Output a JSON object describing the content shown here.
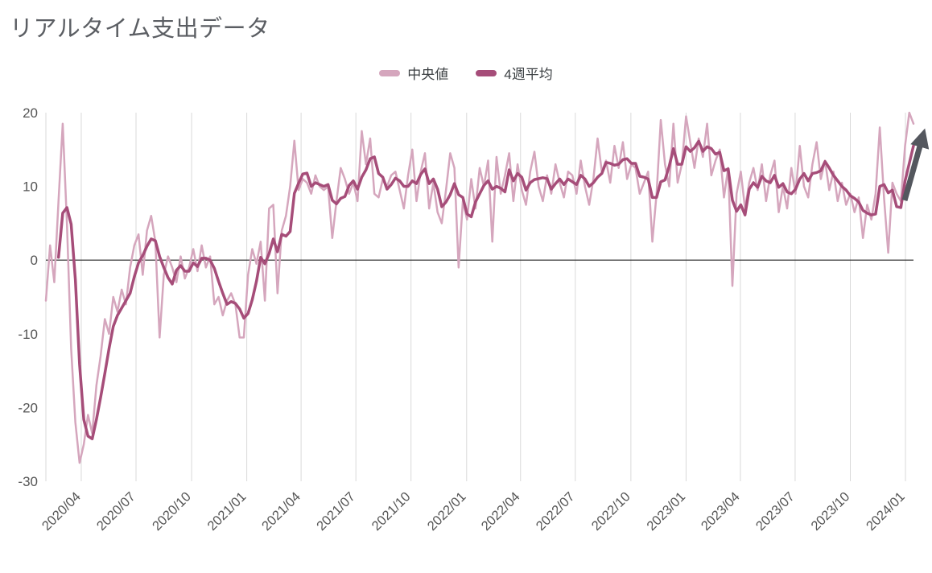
{
  "chart_data": {
    "type": "line",
    "title": "リアルタイム支出データ",
    "legend_position": "top-center",
    "grid": "vertical-quarter-gridlines, zero-baseline",
    "ylim": [
      -30,
      20
    ],
    "y_ticks": [
      20,
      10,
      0,
      -10,
      -20,
      -30
    ],
    "x_ticks": [
      {
        "label": "2020/04",
        "week": 8.4
      },
      {
        "label": "2020/07",
        "week": 21.4
      },
      {
        "label": "2020/10",
        "week": 34.6
      },
      {
        "label": "2021/01",
        "week": 47.7
      },
      {
        "label": "2021/04",
        "week": 60.6
      },
      {
        "label": "2021/07",
        "week": 73.6
      },
      {
        "label": "2021/10",
        "week": 86.7
      },
      {
        "label": "2022/01",
        "week": 99.9
      },
      {
        "label": "2022/04",
        "week": 112.7
      },
      {
        "label": "2022/07",
        "week": 125.7
      },
      {
        "label": "2022/10",
        "week": 138.9
      },
      {
        "label": "2023/01",
        "week": 152.0
      },
      {
        "label": "2023/04",
        "week": 164.9
      },
      {
        "label": "2023/07",
        "week": 177.9
      },
      {
        "label": "2023/10",
        "week": 191.0
      },
      {
        "label": "2024/01",
        "week": 204.1
      }
    ],
    "x_start_date": "2020-02-02",
    "x_step_days": 7,
    "legend": [
      "中央値",
      "4週平均"
    ],
    "series": [
      {
        "name": "中央値",
        "color": "#d5a6bd",
        "stroke_width": 2.5,
        "values": [
          -5.5,
          2,
          -3,
          8,
          18.5,
          5,
          -12,
          -22,
          -27.5,
          -25,
          -21,
          -23.5,
          -17,
          -13,
          -8,
          -10,
          -5,
          -7,
          -4,
          -6,
          -1,
          2,
          3.5,
          -2,
          4,
          6,
          2.5,
          -10.5,
          -2,
          0.5,
          -1,
          -3,
          0.5,
          -2.5,
          -1,
          1.5,
          -1.5,
          2,
          -1,
          0.5,
          -6,
          -5,
          -7.5,
          -5.5,
          -4.5,
          -6,
          -10.5,
          -10.5,
          -2,
          1.5,
          -0.5,
          2.5,
          -5.5,
          7,
          7.5,
          -4.5,
          4,
          6,
          10,
          16.2,
          9.5,
          11,
          10.5,
          9,
          11.5,
          10,
          9.5,
          10,
          3,
          8,
          12.5,
          11,
          9,
          10.5,
          8,
          17.5,
          13,
          16.5,
          9,
          8.5,
          11,
          10,
          11.5,
          12,
          9.5,
          7,
          11.5,
          15,
          8,
          12,
          14.5,
          7,
          10.5,
          6.5,
          5,
          9.5,
          14.5,
          12.5,
          -1,
          8,
          5.5,
          11,
          7,
          12.5,
          10,
          13.5,
          2.5,
          14,
          9,
          11.5,
          14.5,
          8,
          13,
          9.5,
          7.5,
          12,
          14.7,
          10,
          8,
          11.5,
          9,
          13,
          10.5,
          8.5,
          12,
          11.5,
          9,
          13.5,
          10,
          7.5,
          11,
          16.5,
          12,
          13.5,
          10.5,
          15.5,
          12.5,
          16,
          11,
          13,
          12.5,
          9,
          10.5,
          12,
          2.5,
          9,
          19,
          13,
          10,
          18.5,
          10.5,
          13,
          19.5,
          16,
          12.5,
          16.5,
          14,
          18.5,
          11.5,
          13.5,
          15,
          8.5,
          12.5,
          -3.5,
          9,
          12,
          7,
          10.5,
          12.5,
          9.5,
          13,
          8,
          11.5,
          13.5,
          6.5,
          10,
          7,
          12.5,
          9,
          15.5,
          10,
          8.5,
          13,
          16,
          11,
          13.5,
          9.5,
          12,
          8,
          10.5,
          7.5,
          9,
          6.5,
          8.5,
          3,
          7.5,
          5.5,
          9,
          18,
          8.5,
          1,
          10.5,
          9,
          8,
          15.5,
          20,
          18.5
        ]
      },
      {
        "name": "4週平均",
        "color": "#a64d79",
        "stroke_width": 3.5,
        "derived": "4-week trailing rolling mean of 中央値 series (computed at render from the values above)"
      }
    ],
    "annotations": [
      {
        "type": "arrow",
        "direction": "up-right",
        "meaning": "upward trend at latest data",
        "color": "#54575e",
        "position": "right edge of plot, pointing from y≈8 up to y≈17"
      }
    ],
    "colors": {
      "gridline": "#d9d9d9",
      "zero_axis": "#1f1f1f",
      "tick_label": "#555555",
      "title": "#5b5e63"
    }
  }
}
